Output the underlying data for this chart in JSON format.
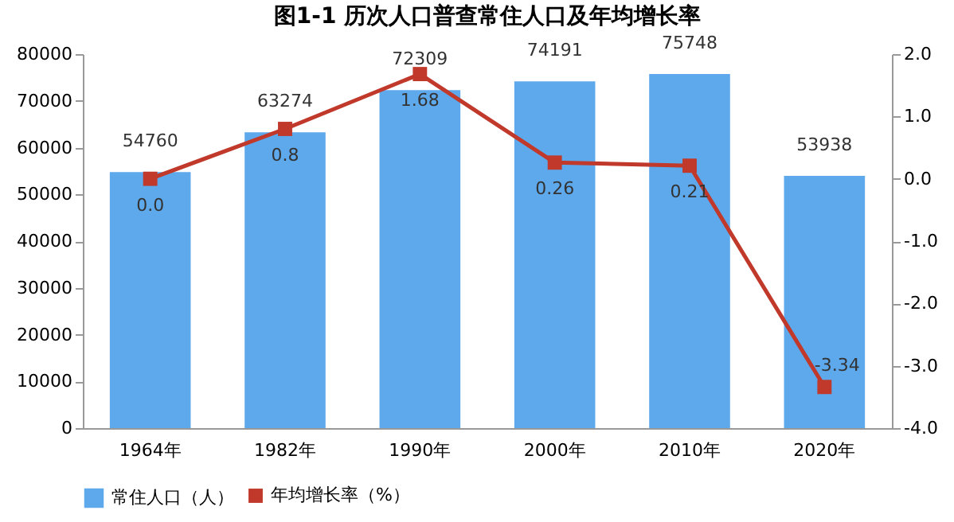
{
  "chart_data": {
    "type": "bar",
    "title": "图1-1 历次人口普查常住人口及年均增长率",
    "categories": [
      "1964年",
      "1982年",
      "1990年",
      "2000年",
      "2010年",
      "2020年"
    ],
    "series": [
      {
        "name": "常住人口（人）",
        "color": "#5ea8ec",
        "values": [
          54760,
          63274,
          72309,
          74191,
          75748,
          53938
        ],
        "value_labels": [
          "54760",
          "63274",
          "72309",
          "74191",
          "75748",
          "53938"
        ]
      },
      {
        "name": "年均增长率（%）",
        "type": "line",
        "axis": "y2",
        "color": "#c0392b",
        "marker": "square",
        "line_style": "solid",
        "values": [
          0.0,
          0.8,
          1.68,
          0.26,
          0.21,
          -3.34
        ],
        "value_labels": [
          "0.0",
          "0.8",
          "1.68",
          "0.26",
          "0.21",
          "-3.34"
        ]
      }
    ],
    "ylim": [
      0,
      80000
    ],
    "yticks": [
      0,
      10000,
      20000,
      30000,
      40000,
      50000,
      60000,
      70000,
      80000
    ],
    "y2lim": [
      -4,
      2
    ],
    "y2ticks": [
      {
        "value": 2,
        "label": "2.0"
      },
      {
        "value": 1,
        "label": "1.0"
      },
      {
        "value": 0,
        "label": "0.0"
      },
      {
        "value": -1,
        "label": "-1.0"
      },
      {
        "value": -2,
        "label": "-2.0"
      },
      {
        "value": -3,
        "label": "-3.0"
      },
      {
        "value": -4,
        "label": "-4.0"
      }
    ],
    "grid": false,
    "legend": "bottom"
  }
}
